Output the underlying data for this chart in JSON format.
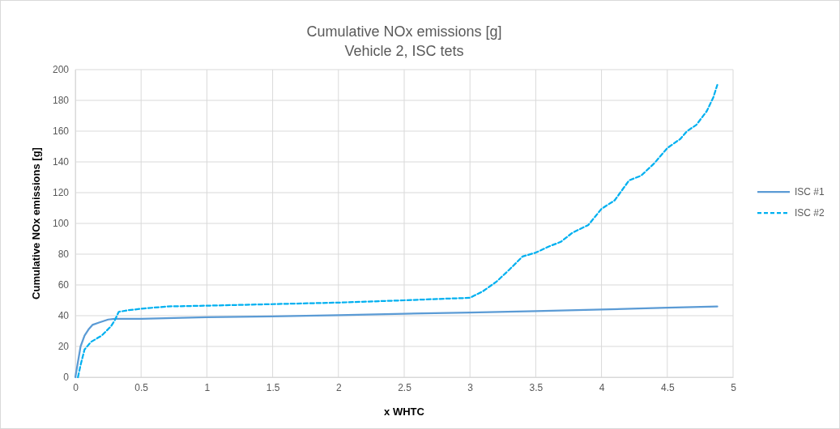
{
  "chart_data": {
    "type": "line",
    "title": "Cumulative NOx emissions [g]",
    "subtitle": "Vehicle 2, ISC tets",
    "xlabel": "x WHTC",
    "ylabel": "Cumulative NOx emissions [g]",
    "xlim": [
      0,
      5
    ],
    "xticks": [
      0,
      0.5,
      1,
      1.5,
      2,
      2.5,
      3,
      3.5,
      4,
      4.5,
      5
    ],
    "ylim": [
      0,
      200
    ],
    "yticks": [
      0,
      20,
      40,
      60,
      80,
      100,
      120,
      140,
      160,
      180,
      200
    ],
    "grid": true,
    "legend": "right",
    "marker": "none",
    "series": [
      {
        "name": "ISC #1",
        "color": "#5b9bd5",
        "line_style": "solid",
        "x": [
          0,
          0.02,
          0.04,
          0.07,
          0.1,
          0.13,
          0.18,
          0.25,
          0.3,
          0.5,
          1,
          1.5,
          2,
          2.5,
          3,
          3.5,
          4,
          4.5,
          4.88
        ],
        "values": [
          0,
          10,
          20,
          27,
          31,
          34,
          35.5,
          37.5,
          38,
          38,
          39,
          39.5,
          40.3,
          41.3,
          42,
          43,
          44,
          45.2,
          46
        ]
      },
      {
        "name": "ISC #2",
        "color": "#00b0f0",
        "line_style": "dashed",
        "x": [
          0.02,
          0.04,
          0.07,
          0.12,
          0.2,
          0.27,
          0.3,
          0.33,
          0.4,
          0.5,
          0.7,
          1,
          1.5,
          2,
          2.5,
          2.8,
          3,
          3.1,
          3.2,
          3.25,
          3.3,
          3.4,
          3.5,
          3.6,
          3.69,
          3.78,
          3.9,
          4,
          4.1,
          4.21,
          4.3,
          4.4,
          4.5,
          4.6,
          4.65,
          4.72,
          4.8,
          4.85,
          4.88
        ],
        "values": [
          0,
          8,
          18,
          23,
          27,
          33,
          37,
          42.5,
          43.5,
          44.5,
          46,
          46.5,
          47.5,
          48.5,
          50,
          51,
          51.6,
          56,
          62,
          66,
          70,
          78.5,
          81,
          85,
          88,
          94,
          99,
          109.5,
          115,
          128,
          131,
          139,
          149,
          155,
          160,
          164,
          173,
          182,
          190
        ]
      }
    ]
  }
}
